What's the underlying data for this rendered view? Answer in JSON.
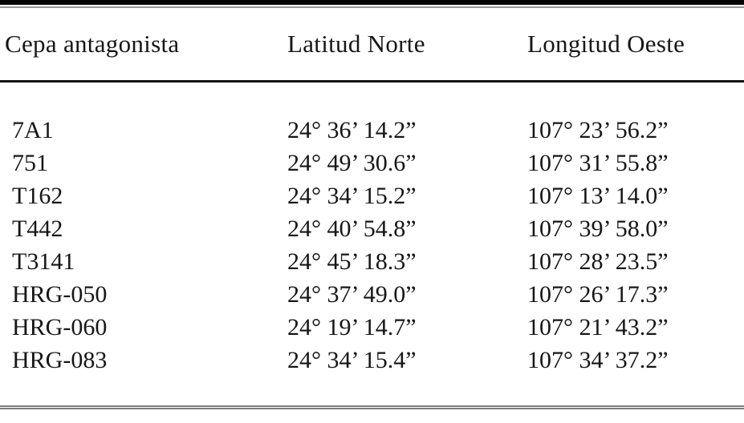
{
  "table": {
    "columns": [
      {
        "label": "Cepa antagonista"
      },
      {
        "label": "Latitud Norte"
      },
      {
        "label": "Longitud Oeste"
      }
    ],
    "rows": [
      {
        "cepa": "7A1",
        "latitud": "24° 36’ 14.2”",
        "longitud": "107° 23’ 56.2”"
      },
      {
        "cepa": "751",
        "latitud": "24° 49’ 30.6”",
        "longitud": "107° 31’ 55.8”"
      },
      {
        "cepa": "T162",
        "latitud": "24° 34’ 15.2”",
        "longitud": "107° 13’ 14.0”"
      },
      {
        "cepa": "T442",
        "latitud": "24° 40’ 54.8”",
        "longitud": "107° 39’ 58.0”"
      },
      {
        "cepa": "T3141",
        "latitud": "24° 45’ 18.3”",
        "longitud": "107° 28’ 23.5”"
      },
      {
        "cepa": "HRG-050",
        "latitud": "24° 37’ 49.0”",
        "longitud": "107° 26’ 17.3”"
      },
      {
        "cepa": "HRG-060",
        "latitud": "24° 19’ 14.7”",
        "longitud": "107° 21’ 43.2”"
      },
      {
        "cepa": "HRG-083",
        "latitud": "24° 34’ 15.4”",
        "longitud": "107° 34’ 37.2”"
      }
    ]
  }
}
